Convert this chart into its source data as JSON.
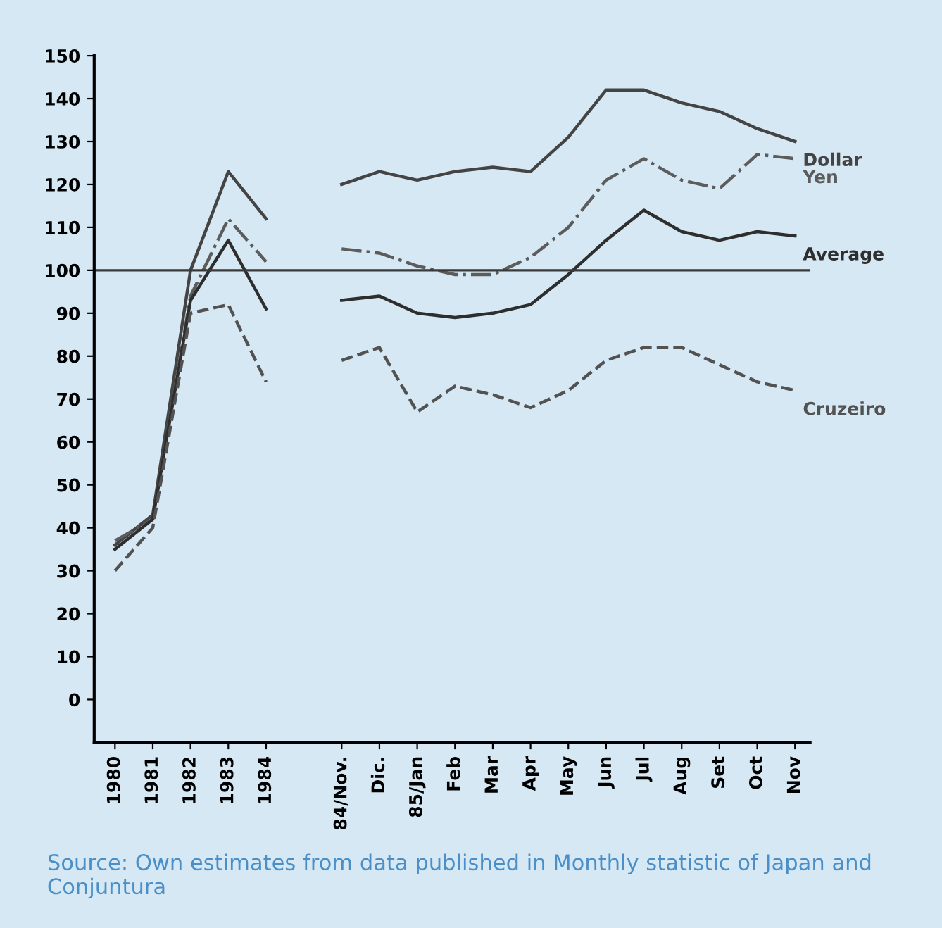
{
  "chart_data": {
    "type": "line",
    "categories": [
      "1980",
      "1981",
      "1982",
      "1983",
      "1984",
      null,
      "84/Nov.",
      "Dic.",
      "85/Jan",
      "Feb",
      "Mar",
      "Apr",
      "May",
      "Jun",
      "Jul",
      "Aug",
      "Set",
      "Oct",
      "Nov"
    ],
    "ylim": [
      -10,
      150
    ],
    "yticks": [
      0,
      10,
      20,
      30,
      40,
      50,
      60,
      70,
      80,
      90,
      100,
      110,
      120,
      130,
      140,
      150
    ],
    "grid": false,
    "legend": false,
    "marker": "none",
    "series": [
      {
        "name": "Dollar",
        "color": "#444444",
        "line_style": "solid",
        "values": [
          36,
          43,
          100,
          123,
          112,
          null,
          120,
          123,
          121,
          123,
          124,
          123,
          131,
          142,
          142,
          139,
          137,
          133,
          130
        ]
      },
      {
        "name": "Yen",
        "color": "#5c5c5c",
        "line_style": "dashdot",
        "values": [
          37,
          42,
          94,
          112,
          102,
          null,
          105,
          104,
          101,
          99,
          99,
          103,
          110,
          121,
          126,
          121,
          119,
          127,
          126
        ]
      },
      {
        "name": "Average",
        "color": "#2e2e2e",
        "line_style": "solid",
        "values": [
          35,
          42,
          93,
          107,
          91,
          null,
          93,
          94,
          90,
          89,
          90,
          92,
          99,
          107,
          114,
          109,
          107,
          109,
          108
        ]
      },
      {
        "name": "Cruzeiro",
        "color": "#525252",
        "line_style": "dashed",
        "values": [
          30,
          40,
          90,
          92,
          74,
          null,
          79,
          82,
          67,
          73,
          71,
          68,
          72,
          79,
          82,
          82,
          78,
          74,
          72
        ]
      }
    ],
    "ref_lines": [
      {
        "axis": "y",
        "value": 100,
        "color": "#3a3a3a",
        "line_style": "solid"
      }
    ],
    "annotations": [
      "Source: Own estimates from data published in Monthly statistic of Japan and Conjuntura"
    ]
  }
}
